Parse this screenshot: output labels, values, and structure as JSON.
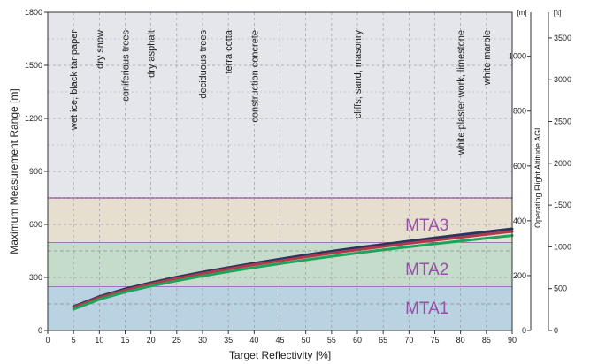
{
  "chart_data": {
    "type": "line",
    "xlabel": "Target Reflectivity [%]",
    "ylabel": "Maximum Measurement Range [m]",
    "y2label": "Operating Flight Altitude AGL",
    "y2_unit": "[m]",
    "y3_unit": "[ft]",
    "xlim": [
      0,
      90
    ],
    "ylim": [
      0,
      1800
    ],
    "x_ticks": [
      0,
      5,
      10,
      15,
      20,
      25,
      30,
      35,
      40,
      45,
      50,
      55,
      60,
      65,
      70,
      75,
      80,
      85,
      90
    ],
    "y_ticks": [
      0,
      300,
      600,
      900,
      1200,
      1500,
      1800
    ],
    "y2_ticks": [
      0,
      200,
      400,
      600,
      800,
      1000
    ],
    "y3_ticks": [
      0,
      500,
      1000,
      1500,
      2000,
      2500,
      3000,
      3500
    ],
    "grid": true,
    "zones": [
      {
        "label": "MTA1",
        "y0": 0,
        "y1": 250,
        "color": "#b9d3e3"
      },
      {
        "label": "MTA2",
        "y0": 250,
        "y1": 500,
        "color": "#c4dcc9"
      },
      {
        "label": "MTA3",
        "y0": 500,
        "y1": 750,
        "color": "#e6dfd0"
      }
    ],
    "zone_dashed_lines": [
      150,
      450
    ],
    "materials": [
      {
        "label": "wet ice, black tar paper",
        "x": 5
      },
      {
        "label": "dry snow",
        "x": 10
      },
      {
        "label": "coniferious trees",
        "x": 15
      },
      {
        "label": "dry asphalt",
        "x": 20
      },
      {
        "label": "deciduous trees",
        "x": 30
      },
      {
        "label": "terra cotta",
        "x": 35
      },
      {
        "label": "construction concrete",
        "x": 40
      },
      {
        "label": "cliffs, sand, masonry",
        "x": 60
      },
      {
        "label": "white plaster work, limestone",
        "x": 80
      },
      {
        "label": "white marble",
        "x": 85
      }
    ],
    "x": [
      5,
      10,
      15,
      20,
      25,
      30,
      35,
      40,
      45,
      50,
      55,
      60,
      65,
      70,
      75,
      80,
      85,
      90
    ],
    "series": [
      {
        "color": "#2b3560",
        "values": [
          135,
          192,
          235,
          270,
          302,
          330,
          356,
          381,
          404,
          427,
          448,
          468,
          487,
          506,
          524,
          541,
          558,
          575
        ]
      },
      {
        "color": "#b2394a",
        "values": [
          130,
          186,
          228,
          263,
          294,
          322,
          348,
          372,
          394,
          416,
          437,
          456,
          475,
          493,
          510,
          527,
          544,
          560
        ]
      },
      {
        "color": "#1fa35a",
        "values": [
          120,
          176,
          217,
          251,
          281,
          308,
          333,
          356,
          378,
          399,
          419,
          438,
          456,
          473,
          490,
          506,
          522,
          537
        ]
      }
    ],
    "panel_bg": "#e4e6ec"
  }
}
